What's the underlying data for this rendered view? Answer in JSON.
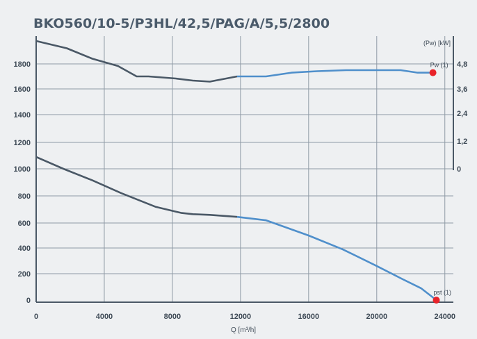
{
  "chart_data": {
    "type": "line",
    "title": "BKO560/10-5/P3HL/42,5/PAG/A/5,5/2800",
    "xlabel": "Q [m³/h]",
    "right_axis_label": "(Pw) [kW]",
    "x_ticks": [
      "0",
      "4000",
      "8000",
      "12000",
      "16000",
      "20000",
      "24000"
    ],
    "y_ticks": [
      "0",
      "200",
      "400",
      "600",
      "800",
      "1000",
      "1200",
      "1400",
      "1600",
      "1800"
    ],
    "right_ticks": [
      "0",
      "1,2",
      "2,4",
      "3,6",
      "4,8"
    ],
    "grid": true,
    "series": [
      {
        "name": "pst (1)",
        "axis": "left",
        "color_dark": "#4a5866",
        "color_light": "#4f8fcb",
        "split_x": 11800,
        "x": [
          0,
          1600,
          3300,
          5000,
          7000,
          8500,
          9200,
          10200,
          11800,
          13500,
          16000,
          18000,
          20000,
          21500,
          22600,
          23500
        ],
        "y": [
          1090,
          1000,
          915,
          820,
          720,
          675,
          665,
          660,
          645,
          620,
          500,
          390,
          260,
          160,
          90,
          0
        ]
      },
      {
        "name": "Pw (1)",
        "axis": "right",
        "color_dark": "#4a5866",
        "color_light": "#4f8fcb",
        "split_x": 11800,
        "x": [
          0,
          1800,
          3300,
          4800,
          5900,
          6600,
          8200,
          9200,
          10200,
          11800,
          13500,
          15000,
          16500,
          18200,
          20000,
          21400,
          22400,
          23300
        ],
        "y": [
          5.9,
          5.55,
          5.05,
          4.7,
          4.2,
          4.2,
          4.1,
          4.0,
          3.95,
          4.2,
          4.2,
          4.38,
          4.45,
          4.5,
          4.5,
          4.5,
          4.38,
          4.38
        ]
      }
    ],
    "endpoint_marker_color": "#e8232a"
  }
}
